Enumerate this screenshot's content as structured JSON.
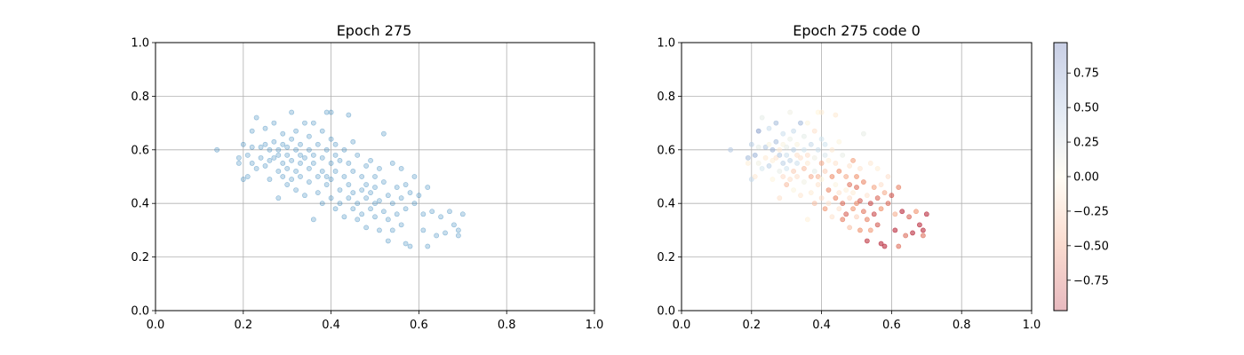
{
  "chart_data": [
    {
      "type": "scatter",
      "title": "Epoch 275",
      "xlabel": "",
      "ylabel": "",
      "xlim": [
        0.0,
        1.0
      ],
      "ylim": [
        0.0,
        1.0
      ],
      "xticks": [
        "0.0",
        "0.2",
        "0.4",
        "0.6",
        "0.8",
        "1.0"
      ],
      "yticks": [
        "0.0",
        "0.2",
        "0.4",
        "0.6",
        "0.8",
        "1.0"
      ],
      "grid": true,
      "marker_color": "#1f77b4",
      "marker_alpha": 0.25,
      "points": [
        [
          0.14,
          0.6
        ],
        [
          0.19,
          0.57
        ],
        [
          0.19,
          0.55
        ],
        [
          0.2,
          0.49
        ],
        [
          0.2,
          0.62
        ],
        [
          0.21,
          0.5
        ],
        [
          0.21,
          0.58
        ],
        [
          0.22,
          0.61
        ],
        [
          0.22,
          0.55
        ],
        [
          0.22,
          0.67
        ],
        [
          0.23,
          0.72
        ],
        [
          0.23,
          0.53
        ],
        [
          0.24,
          0.61
        ],
        [
          0.24,
          0.57
        ],
        [
          0.25,
          0.54
        ],
        [
          0.25,
          0.68
        ],
        [
          0.25,
          0.62
        ],
        [
          0.26,
          0.6
        ],
        [
          0.26,
          0.56
        ],
        [
          0.26,
          0.49
        ],
        [
          0.27,
          0.63
        ],
        [
          0.27,
          0.57
        ],
        [
          0.27,
          0.7
        ],
        [
          0.28,
          0.52
        ],
        [
          0.28,
          0.6
        ],
        [
          0.28,
          0.58
        ],
        [
          0.28,
          0.42
        ],
        [
          0.29,
          0.62
        ],
        [
          0.29,
          0.55
        ],
        [
          0.29,
          0.5
        ],
        [
          0.29,
          0.66
        ],
        [
          0.3,
          0.58
        ],
        [
          0.3,
          0.47
        ],
        [
          0.3,
          0.53
        ],
        [
          0.3,
          0.61
        ],
        [
          0.31,
          0.74
        ],
        [
          0.31,
          0.56
        ],
        [
          0.31,
          0.49
        ],
        [
          0.31,
          0.64
        ],
        [
          0.32,
          0.6
        ],
        [
          0.32,
          0.52
        ],
        [
          0.32,
          0.45
        ],
        [
          0.32,
          0.67
        ],
        [
          0.33,
          0.58
        ],
        [
          0.33,
          0.55
        ],
        [
          0.33,
          0.62
        ],
        [
          0.33,
          0.5
        ],
        [
          0.34,
          0.7
        ],
        [
          0.34,
          0.57
        ],
        [
          0.34,
          0.43
        ],
        [
          0.35,
          0.6
        ],
        [
          0.35,
          0.53
        ],
        [
          0.35,
          0.48
        ],
        [
          0.35,
          0.65
        ],
        [
          0.36,
          0.58
        ],
        [
          0.36,
          0.34
        ],
        [
          0.36,
          0.7
        ],
        [
          0.36,
          0.55
        ],
        [
          0.37,
          0.62
        ],
        [
          0.37,
          0.5
        ],
        [
          0.37,
          0.44
        ],
        [
          0.38,
          0.57
        ],
        [
          0.38,
          0.67
        ],
        [
          0.38,
          0.52
        ],
        [
          0.38,
          0.4
        ],
        [
          0.39,
          0.74
        ],
        [
          0.39,
          0.6
        ],
        [
          0.39,
          0.5
        ],
        [
          0.39,
          0.47
        ],
        [
          0.4,
          0.64
        ],
        [
          0.4,
          0.55
        ],
        [
          0.4,
          0.49
        ],
        [
          0.4,
          0.42
        ],
        [
          0.4,
          0.74
        ],
        [
          0.41,
          0.58
        ],
        [
          0.41,
          0.52
        ],
        [
          0.41,
          0.38
        ],
        [
          0.41,
          0.62
        ],
        [
          0.42,
          0.45
        ],
        [
          0.42,
          0.56
        ],
        [
          0.42,
          0.4
        ],
        [
          0.43,
          0.5
        ],
        [
          0.43,
          0.35
        ],
        [
          0.43,
          0.6
        ],
        [
          0.44,
          0.73
        ],
        [
          0.44,
          0.47
        ],
        [
          0.44,
          0.42
        ],
        [
          0.44,
          0.55
        ],
        [
          0.45,
          0.38
        ],
        [
          0.45,
          0.52
        ],
        [
          0.45,
          0.44
        ],
        [
          0.45,
          0.63
        ],
        [
          0.46,
          0.4
        ],
        [
          0.46,
          0.58
        ],
        [
          0.46,
          0.34
        ],
        [
          0.47,
          0.5
        ],
        [
          0.47,
          0.45
        ],
        [
          0.47,
          0.36
        ],
        [
          0.48,
          0.54
        ],
        [
          0.48,
          0.42
        ],
        [
          0.48,
          0.47
        ],
        [
          0.48,
          0.31
        ],
        [
          0.49,
          0.38
        ],
        [
          0.49,
          0.56
        ],
        [
          0.49,
          0.44
        ],
        [
          0.5,
          0.5
        ],
        [
          0.5,
          0.4
        ],
        [
          0.5,
          0.35
        ],
        [
          0.5,
          0.46
        ],
        [
          0.51,
          0.53
        ],
        [
          0.51,
          0.3
        ],
        [
          0.51,
          0.41
        ],
        [
          0.52,
          0.66
        ],
        [
          0.52,
          0.37
        ],
        [
          0.52,
          0.48
        ],
        [
          0.53,
          0.43
        ],
        [
          0.53,
          0.26
        ],
        [
          0.53,
          0.34
        ],
        [
          0.54,
          0.55
        ],
        [
          0.54,
          0.4
        ],
        [
          0.54,
          0.3
        ],
        [
          0.55,
          0.46
        ],
        [
          0.55,
          0.36
        ],
        [
          0.56,
          0.53
        ],
        [
          0.56,
          0.42
        ],
        [
          0.56,
          0.32
        ],
        [
          0.57,
          0.47
        ],
        [
          0.57,
          0.25
        ],
        [
          0.57,
          0.38
        ],
        [
          0.58,
          0.44
        ],
        [
          0.58,
          0.24
        ],
        [
          0.59,
          0.5
        ],
        [
          0.59,
          0.4
        ],
        [
          0.6,
          0.43
        ],
        [
          0.61,
          0.36
        ],
        [
          0.61,
          0.3
        ],
        [
          0.62,
          0.46
        ],
        [
          0.62,
          0.24
        ],
        [
          0.63,
          0.37
        ],
        [
          0.64,
          0.28
        ],
        [
          0.65,
          0.35
        ],
        [
          0.66,
          0.29
        ],
        [
          0.67,
          0.37
        ],
        [
          0.68,
          0.32
        ],
        [
          0.69,
          0.3
        ],
        [
          0.69,
          0.28
        ],
        [
          0.7,
          0.36
        ]
      ]
    },
    {
      "type": "scatter",
      "title": "Epoch 275 code 0",
      "xlabel": "",
      "ylabel": "",
      "xlim": [
        0.0,
        1.0
      ],
      "ylim": [
        0.0,
        1.0
      ],
      "xticks": [
        "0.0",
        "0.2",
        "0.4",
        "0.6",
        "0.8",
        "1.0"
      ],
      "yticks": [
        "0.0",
        "0.2",
        "0.4",
        "0.6",
        "0.8",
        "1.0"
      ],
      "grid": true,
      "marker_alpha": 0.3,
      "color_rule": "points colored by code value, higher values blue/purple toward upper-left, lower values red/orange toward lower-right",
      "colorbar": {
        "range": [
          -0.97,
          0.97
        ],
        "ticks": [
          "0.75",
          "0.50",
          "0.25",
          "0.00",
          "−0.25",
          "−0.50",
          "−0.75"
        ],
        "tick_values": [
          0.75,
          0.5,
          0.25,
          0.0,
          -0.25,
          -0.5,
          -0.75
        ],
        "colors": [
          "#b2182b",
          "#ef8a62",
          "#fddbc7",
          "#fff5dc",
          "#d1e5f0",
          "#9fb6d8",
          "#4a5fa8"
        ]
      }
    }
  ]
}
